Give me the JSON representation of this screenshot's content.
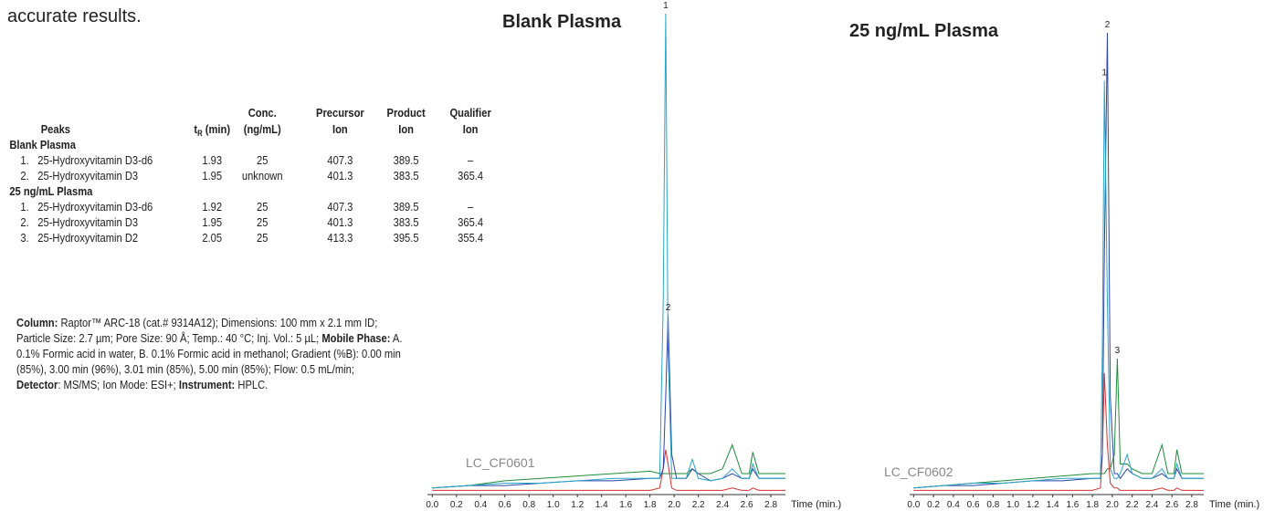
{
  "intro": "accurate results.",
  "table": {
    "headers": {
      "peaks": "Peaks",
      "tr": "t",
      "tr_sub": "R",
      "tr_unit": " (min)",
      "conc": [
        "Conc.",
        "(ng/mL)"
      ],
      "precursor": [
        "Precursor",
        "Ion"
      ],
      "product": [
        "Product",
        "Ion"
      ],
      "qualifier": [
        "Qualifier",
        "Ion"
      ]
    },
    "groups": [
      {
        "name": "Blank Plasma",
        "rows": [
          {
            "num": "1.",
            "peak": "25-Hydroxyvitamin D3-d6",
            "tr": 1.93,
            "conc": 25,
            "precursor": 407.3,
            "product": 389.5,
            "qualifier": "–"
          },
          {
            "num": "2.",
            "peak": "25-Hydroxyvitamin D3",
            "tr": 1.95,
            "conc": "unknown",
            "precursor": 401.3,
            "product": 383.5,
            "qualifier": 365.4
          }
        ]
      },
      {
        "name": "25 ng/mL Plasma",
        "rows": [
          {
            "num": "1.",
            "peak": "25-Hydroxyvitamin D3-d6",
            "tr": 1.92,
            "conc": 25,
            "precursor": 407.3,
            "product": 389.5,
            "qualifier": "–"
          },
          {
            "num": "2.",
            "peak": "25-Hydroxyvitamin D3",
            "tr": 1.95,
            "conc": 25,
            "precursor": 401.3,
            "product": 383.5,
            "qualifier": 365.4
          },
          {
            "num": "3.",
            "peak": "25-Hydroxyvitamin D2",
            "tr": 2.05,
            "conc": 25,
            "precursor": 413.3,
            "product": 395.5,
            "qualifier": 355.4
          }
        ]
      }
    ]
  },
  "conditions": [
    [
      {
        "text": "Column:",
        "bold": true
      },
      {
        "text": " Raptor™ ARC-18 (cat.# 9314A12); Dimensions: 100 mm  x 2.1 mm ID;",
        "bold": false
      }
    ],
    [
      {
        "text": "Particle Size: 2.7 µm; Pore Size: 90 Å; Temp.: 40 °C; Inj. Vol.: 5 µL; ",
        "bold": false
      },
      {
        "text": "Mobile Phase:",
        "bold": true
      },
      {
        "text": " A.",
        "bold": false
      }
    ],
    [
      {
        "text": "0.1% Formic acid in water, B. 0.1% Formic acid in methanol; Gradient (%B): 0.00 min",
        "bold": false
      }
    ],
    [
      {
        "text": "(85%), 3.00 min (96%), 3.01 min (85%), 5.00 min (85%); Flow: 0.5 mL/min;",
        "bold": false
      }
    ],
    [
      {
        "text": "Detector",
        "bold": true
      },
      {
        "text": ": MS/MS; Ion Mode: ESI+; ",
        "bold": false
      },
      {
        "text": "Instrument:",
        "bold": true
      },
      {
        "text": " HPLC.",
        "bold": false
      }
    ]
  ],
  "chart_data": [
    {
      "type": "line",
      "title": "Blank Plasma",
      "watermark": "LC_CF0601",
      "xlabel": "Time (min.)",
      "xlim": [
        -0.04,
        2.92
      ],
      "ylim": [
        0,
        100
      ],
      "xticks": [
        {
          "value": 0,
          "label": "0.0"
        },
        0.2,
        0.4,
        0.6,
        0.8,
        {
          "value": 1,
          "label": "1.0"
        },
        1.2,
        1.4,
        1.6,
        1.8,
        {
          "value": 2,
          "label": "2.0"
        },
        2.2,
        2.4,
        2.6,
        2.8
      ],
      "x": [
        0,
        0.3,
        0.6,
        0.9,
        1.2,
        1.5,
        1.8,
        1.88,
        1.91,
        1.93,
        1.95,
        1.98,
        2.02,
        2.1,
        2.15,
        2.2,
        2.3,
        2.4,
        2.48,
        2.56,
        2.62,
        2.65,
        2.7,
        2.8,
        2.92
      ],
      "series": [
        {
          "color": "#1e8c3a",
          "values": [
            1,
            1.5,
            2.5,
            3,
            3.5,
            4,
            4.5,
            4,
            4,
            4,
            4,
            4,
            4,
            4,
            5,
            4,
            4,
            5,
            10,
            4,
            4,
            8.5,
            4,
            4,
            4
          ]
        },
        {
          "color": "#d93030",
          "values": [
            0.5,
            0.5,
            0.5,
            0.5,
            0.5,
            0.5,
            0.5,
            1,
            5,
            9,
            6,
            1,
            0.5,
            0.5,
            0.5,
            0.5,
            0.5,
            0.5,
            1,
            0.5,
            0.5,
            1,
            0.5,
            0.5,
            0.5
          ]
        },
        {
          "color": "#2a44a8",
          "values": [
            1,
            1.5,
            1.5,
            2,
            2.5,
            2.5,
            3,
            3,
            5,
            20,
            37,
            8,
            3,
            3,
            5,
            4,
            2.5,
            3,
            4,
            3,
            3,
            5,
            3,
            3,
            3
          ]
        },
        {
          "color": "#28a5c8",
          "values": [
            1,
            1.5,
            2,
            2,
            2.5,
            3,
            3,
            3,
            40,
            100,
            30,
            3,
            3,
            3,
            7,
            3,
            2.5,
            3,
            5,
            3,
            3,
            6,
            3,
            3,
            3
          ]
        }
      ],
      "annotations": [
        {
          "text": "1",
          "x": 1.93,
          "y": 100
        },
        {
          "text": "2",
          "x": 1.95,
          "y": 37
        }
      ]
    },
    {
      "type": "line",
      "title": "25 ng/mL Plasma",
      "watermark": "LC_CF0602",
      "xlabel": "Time (min.)",
      "xlim": [
        -0.04,
        2.92
      ],
      "ylim": [
        0,
        100
      ],
      "xticks": [
        {
          "value": 0,
          "label": "0.0"
        },
        0.2,
        0.4,
        0.6,
        0.8,
        {
          "value": 1,
          "label": "1.0"
        },
        1.2,
        1.4,
        1.6,
        1.8,
        {
          "value": 2,
          "label": "2.0"
        },
        2.2,
        2.4,
        2.6,
        2.8
      ],
      "x": [
        0,
        0.3,
        0.6,
        0.9,
        1.2,
        1.5,
        1.8,
        1.88,
        1.9,
        1.92,
        1.95,
        1.98,
        2.02,
        2.05,
        2.08,
        2.15,
        2.2,
        2.3,
        2.4,
        2.5,
        2.56,
        2.62,
        2.65,
        2.7,
        2.8,
        2.92
      ],
      "series": [
        {
          "color": "#1e8c3a",
          "values": [
            1,
            1.5,
            2,
            2.5,
            3,
            3.5,
            4,
            4,
            4,
            4,
            5,
            5,
            8,
            28,
            6,
            6,
            5,
            4,
            4,
            10,
            4,
            4,
            9,
            4,
            4,
            4
          ]
        },
        {
          "color": "#d93030",
          "values": [
            0.5,
            0.5,
            0.5,
            0.5,
            0.5,
            0.5,
            0.5,
            1,
            8,
            25,
            10,
            2,
            1,
            1,
            0.5,
            0.5,
            0.5,
            0.5,
            0.5,
            1,
            0.5,
            0.5,
            1,
            0.5,
            0.5,
            0.5
          ]
        },
        {
          "color": "#2a44a8",
          "values": [
            1,
            1.5,
            1.5,
            2,
            2.5,
            2.5,
            3,
            3,
            8,
            50,
            96,
            20,
            4,
            4,
            3,
            5,
            4,
            3,
            3,
            4,
            3,
            3,
            5,
            3,
            3,
            3
          ]
        },
        {
          "color": "#28a5c8",
          "values": [
            1,
            1.5,
            2,
            2,
            2.5,
            3,
            3,
            3,
            30,
            86,
            40,
            5,
            3,
            3,
            4,
            8,
            4,
            3,
            3,
            5,
            3,
            3,
            6,
            3,
            3,
            3
          ]
        }
      ],
      "annotations": [
        {
          "text": "1",
          "x": 1.92,
          "y": 86
        },
        {
          "text": "2",
          "x": 1.95,
          "y": 96
        },
        {
          "text": "3",
          "x": 2.05,
          "y": 28
        }
      ]
    }
  ]
}
